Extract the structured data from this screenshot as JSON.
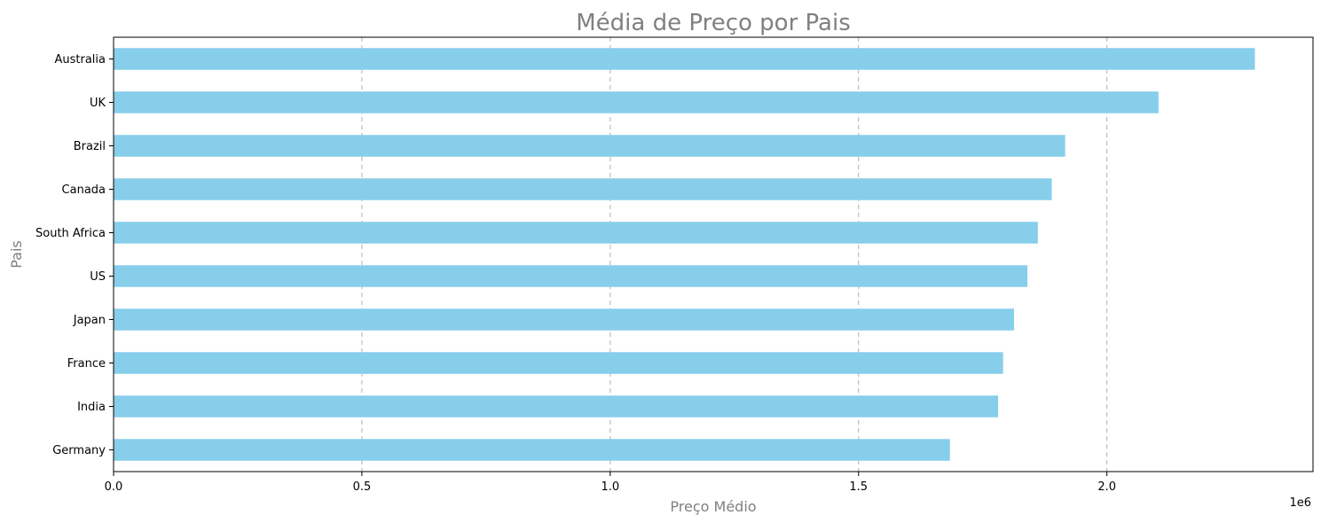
{
  "chart_data": {
    "type": "bar",
    "orientation": "horizontal",
    "title": "Média de Preço por Pais",
    "xlabel": "Preço Médio",
    "ylabel": "Pais",
    "x_offset_label": "1e6",
    "x_ticks": [
      0.0,
      0.5,
      1.0,
      1.5,
      2.0
    ],
    "x_tick_labels": [
      "0.0",
      "0.5",
      "1.0",
      "1.5",
      "2.0"
    ],
    "x_multiplier": 1000000,
    "xlim": [
      0,
      2415000
    ],
    "grid": "x-dashed",
    "bar_color": "#87ceeb",
    "categories": [
      "Australia",
      "UK",
      "Brazil",
      "Canada",
      "South Africa",
      "US",
      "Japan",
      "France",
      "India",
      "Germany"
    ],
    "values": [
      2298000,
      2104000,
      1916000,
      1889000,
      1861000,
      1840000,
      1813000,
      1791000,
      1781000,
      1684000
    ]
  }
}
